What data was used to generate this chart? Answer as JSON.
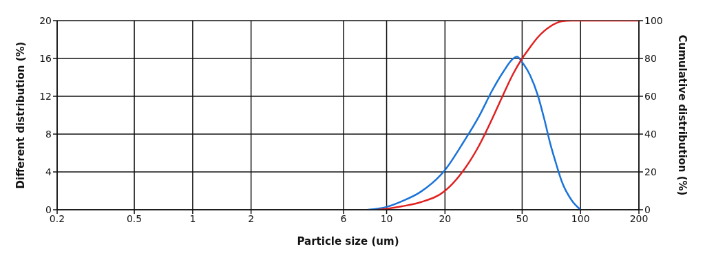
{
  "chart_data": {
    "type": "line",
    "xlabel": "Particle size (um)",
    "ylabel": "Different distribution (%)",
    "y2label": "Cumulative distribution (%)",
    "log": "x",
    "xlim": [
      0.2,
      200
    ],
    "xticks": [
      0.2,
      0.5,
      1,
      2,
      6,
      10,
      20,
      50,
      100,
      200
    ],
    "ylim": [
      0,
      20
    ],
    "yticks": [
      0,
      4,
      8,
      12,
      16,
      20
    ],
    "y2lim": [
      0,
      100
    ],
    "y2ticks": [
      0,
      20,
      40,
      60,
      80,
      100
    ],
    "grid": true,
    "marker": "none",
    "line_style": "solid",
    "series": [
      {
        "color": "#1a73d9",
        "x": [
          8,
          10,
          12,
          15,
          20,
          25,
          30,
          35,
          40,
          45,
          47,
          50,
          55,
          60,
          65,
          70,
          75,
          80,
          90,
          100
        ],
        "values": [
          0,
          0.3,
          0.9,
          1.9,
          4.2,
          7.2,
          9.9,
          12.6,
          14.6,
          16,
          16.2,
          15.6,
          14.2,
          12.2,
          9.6,
          6.9,
          4.8,
          3,
          1,
          0
        ]
      },
      {
        "color": "#e02020",
        "axis": "y2",
        "x": [
          9,
          10,
          12,
          15,
          20,
          25,
          30,
          35,
          40,
          45,
          50,
          55,
          60,
          70,
          80,
          90,
          100,
          200
        ],
        "values": [
          0,
          0.5,
          1.8,
          4,
          10,
          21,
          34,
          48,
          61,
          72,
          80,
          86,
          91,
          97,
          99.6,
          100,
          100,
          100
        ]
      }
    ]
  }
}
